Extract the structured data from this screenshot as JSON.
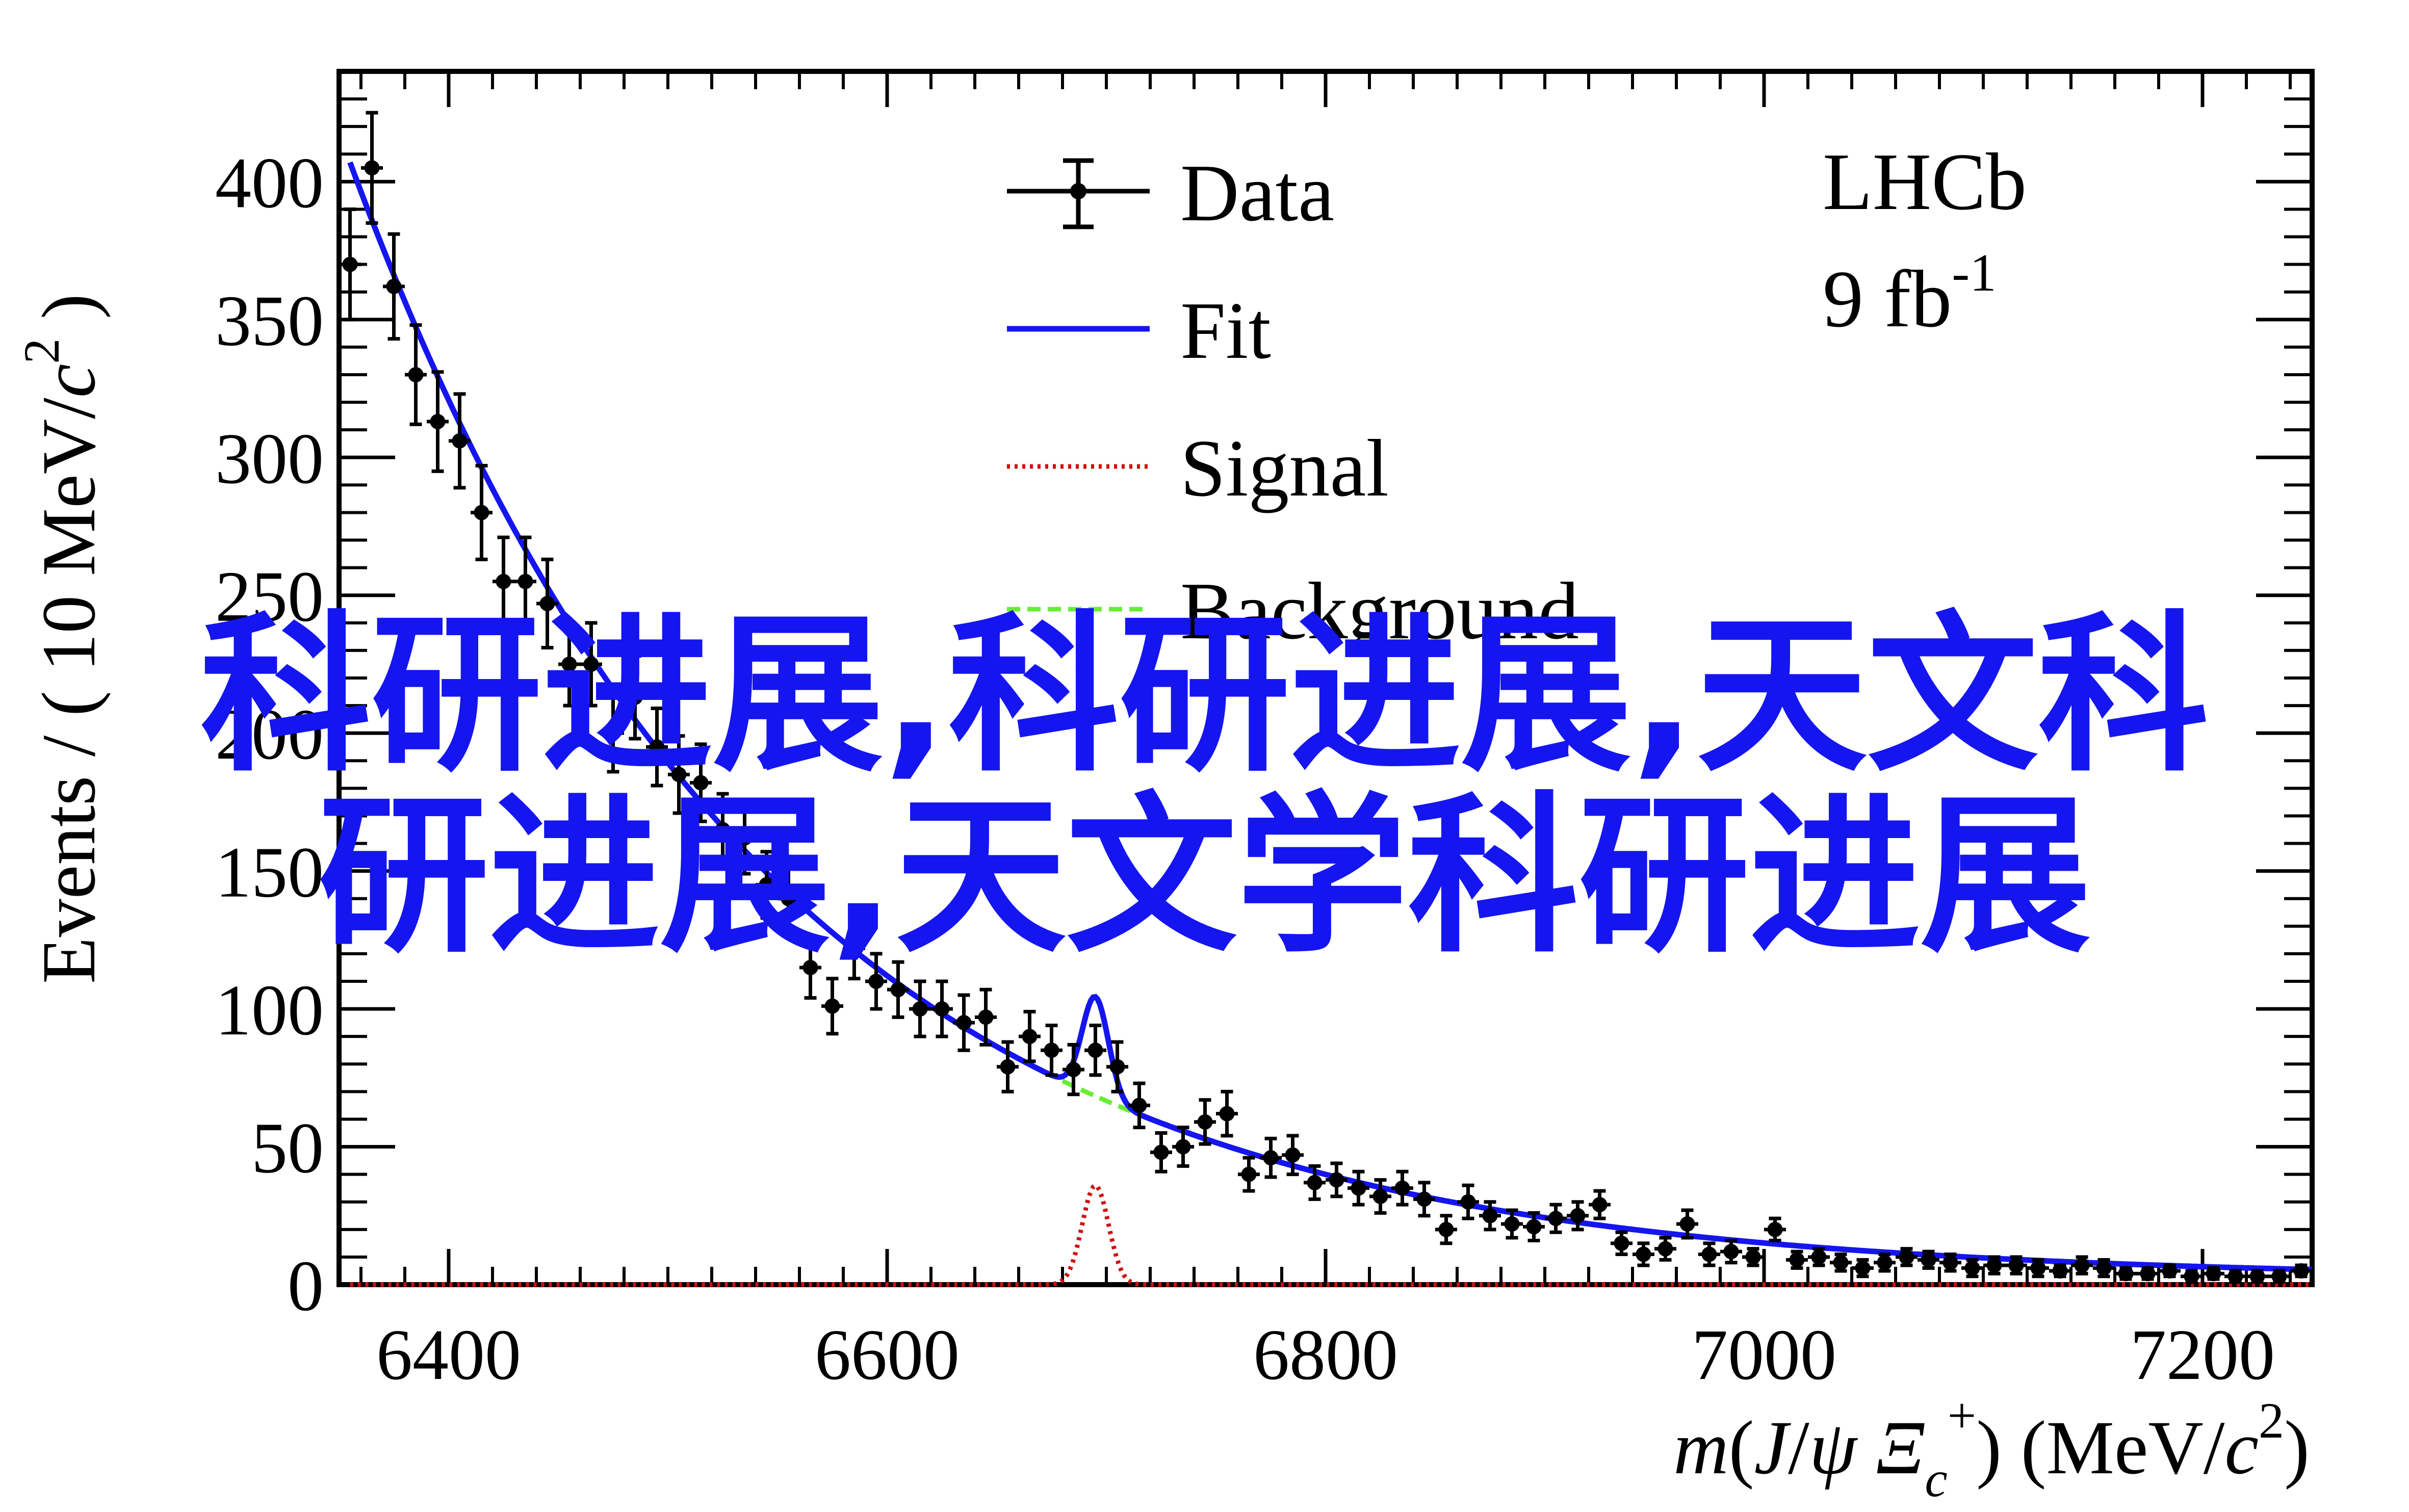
{
  "chart_data": {
    "type": "scatter",
    "experiment": "LHCb",
    "luminosity": "9 fb",
    "luminosity_exponent": "-1",
    "xlim": [
      6350,
      7250
    ],
    "ylim": [
      0,
      440
    ],
    "x_ticks": [
      6400,
      6600,
      6800,
      7000,
      7200
    ],
    "y_ticks": [
      0,
      50,
      100,
      150,
      200,
      250,
      300,
      350,
      400
    ],
    "xlabel": "m(J/ψ Ξc+) (MeV/c²)",
    "ylabel": "Events / ( 10 MeV/c² )",
    "legend": {
      "placement": "top-center",
      "entries": [
        {
          "label": "Data",
          "style": "marker-errorbar",
          "color": "#000000"
        },
        {
          "label": "Fit",
          "style": "solid",
          "color": "#1515f0"
        },
        {
          "label": "Signal",
          "style": "dotted",
          "color": "#d01010"
        },
        {
          "label": "Background",
          "style": "dashed",
          "color": "#66ee33"
        }
      ]
    },
    "series": [
      {
        "name": "Data",
        "x": [
          6355,
          6365,
          6375,
          6385,
          6395,
          6405,
          6415,
          6425,
          6435,
          6445,
          6455,
          6465,
          6475,
          6485,
          6495,
          6505,
          6515,
          6525,
          6535,
          6545,
          6555,
          6565,
          6575,
          6585,
          6595,
          6605,
          6615,
          6625,
          6635,
          6645,
          6655,
          6665,
          6675,
          6685,
          6695,
          6705,
          6715,
          6725,
          6735,
          6745,
          6755,
          6765,
          6775,
          6785,
          6795,
          6805,
          6815,
          6825,
          6835,
          6845,
          6855,
          6865,
          6875,
          6885,
          6895,
          6905,
          6915,
          6925,
          6935,
          6945,
          6955,
          6965,
          6975,
          6985,
          6995,
          7005,
          7015,
          7025,
          7035,
          7045,
          7055,
          7065,
          7075,
          7085,
          7095,
          7105,
          7115,
          7125,
          7135,
          7145,
          7155,
          7165,
          7175,
          7185,
          7195,
          7205,
          7215,
          7225,
          7235,
          7245
        ],
        "y": [
          370,
          405,
          362,
          330,
          313,
          306,
          280,
          255,
          255,
          247,
          225,
          225,
          200,
          213,
          195,
          185,
          182,
          165,
          162,
          145,
          140,
          115,
          101,
          122,
          110,
          107,
          100,
          100,
          95,
          97,
          79,
          90,
          85,
          78,
          85,
          79,
          65,
          48,
          50,
          59,
          62,
          40,
          46,
          47,
          37,
          38,
          35,
          32,
          35,
          31,
          20,
          30,
          25,
          22,
          21,
          24,
          25,
          29,
          15,
          11,
          13,
          22,
          11,
          12,
          10,
          20,
          9,
          10,
          8,
          6,
          8,
          10,
          9,
          8,
          6,
          7,
          7,
          6,
          5,
          7,
          6,
          4,
          4,
          5,
          3,
          4,
          3,
          3,
          3,
          5
        ],
        "yerr": [
          20,
          20,
          19,
          18,
          18,
          17,
          17,
          16,
          16,
          16,
          15,
          15,
          14,
          15,
          14,
          14,
          14,
          13,
          13,
          12,
          12,
          11,
          10,
          11,
          10,
          10,
          10,
          10,
          10,
          10,
          9,
          9,
          9,
          9,
          9,
          9,
          8,
          7,
          7,
          8,
          8,
          6,
          7,
          7,
          6,
          6,
          6,
          6,
          6,
          6,
          5,
          6,
          5,
          5,
          5,
          5,
          5,
          5,
          4,
          4,
          4,
          5,
          4,
          4,
          3,
          4,
          3,
          3,
          3,
          3,
          3,
          3,
          3,
          3,
          3,
          3,
          3,
          3,
          2,
          3,
          3,
          2,
          2,
          2,
          2,
          2,
          2,
          2,
          2,
          2
        ],
        "xerr": 5
      }
    ],
    "fit": {
      "background": {
        "amplitude": 405,
        "mu0": 6355,
        "decay": 188,
        "offset": 2
      },
      "signal": {
        "peak": 6695,
        "sigma": 6,
        "amplitude": 36
      }
    }
  },
  "overlay": {
    "line1": "科研进展,科研进展,天文科",
    "line2": "研进展,天文学科研进展",
    "color": "#1515f0"
  },
  "colors": {
    "fit": "#1515f0",
    "signal": "#d01010",
    "background": "#66ee33",
    "data": "#000000"
  }
}
